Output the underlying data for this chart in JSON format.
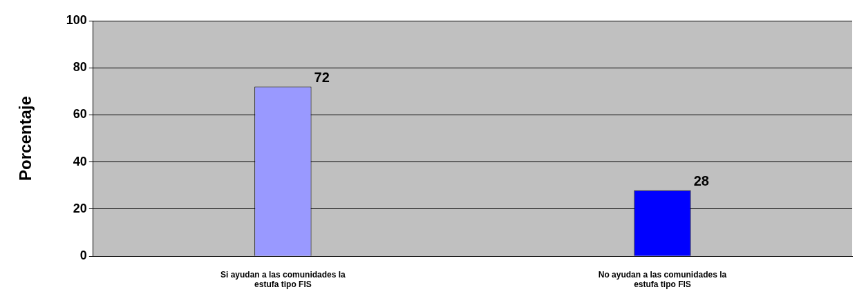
{
  "chart_data": {
    "type": "bar",
    "ylabel": "Porcentaje",
    "categories": [
      "Si ayudan a las comunidades la estufa tipo FIS",
      "No ayudan a las comunidades la estufa tipo FIS"
    ],
    "values": [
      72,
      28
    ],
    "colors": [
      "#9999ff",
      "#0000ff"
    ],
    "ylim": [
      0,
      100
    ],
    "yticks": [
      0,
      20,
      40,
      60,
      80,
      100
    ],
    "grid": "y",
    "data_labels": true
  }
}
